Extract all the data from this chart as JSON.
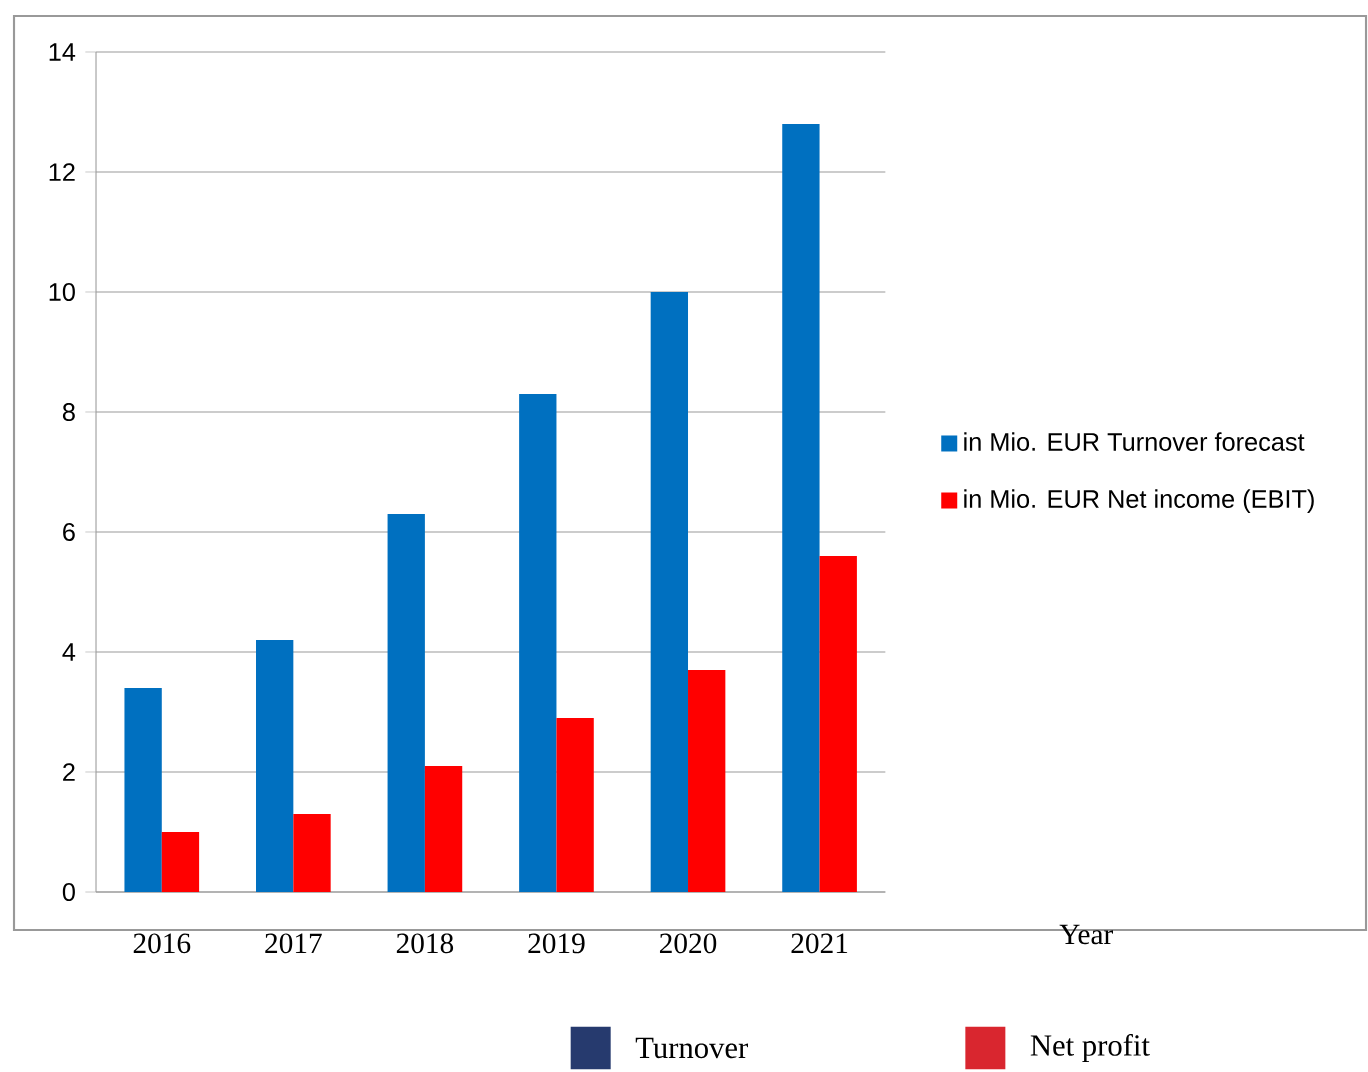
{
  "chart_data": {
    "type": "bar",
    "categories": [
      "2016",
      "2017",
      "2018",
      "2019",
      "2020",
      "2021"
    ],
    "series": [
      {
        "name": "in Mio. EUR Turnover forecast",
        "color": "#0070c0",
        "values": [
          3.4,
          4.2,
          6.3,
          8.3,
          10.0,
          12.8
        ]
      },
      {
        "name": "in Mio. EUR Net income (EBIT)",
        "color": "#ff0000",
        "values": [
          1.0,
          1.3,
          2.1,
          2.9,
          3.7,
          5.6
        ]
      }
    ],
    "ylim": [
      0,
      14
    ],
    "yticks": [
      0,
      2,
      4,
      6,
      8,
      10,
      12,
      14
    ],
    "grid": "y",
    "legend": "right",
    "annotations": [
      "Year",
      "Turnover",
      "Net profit"
    ]
  }
}
